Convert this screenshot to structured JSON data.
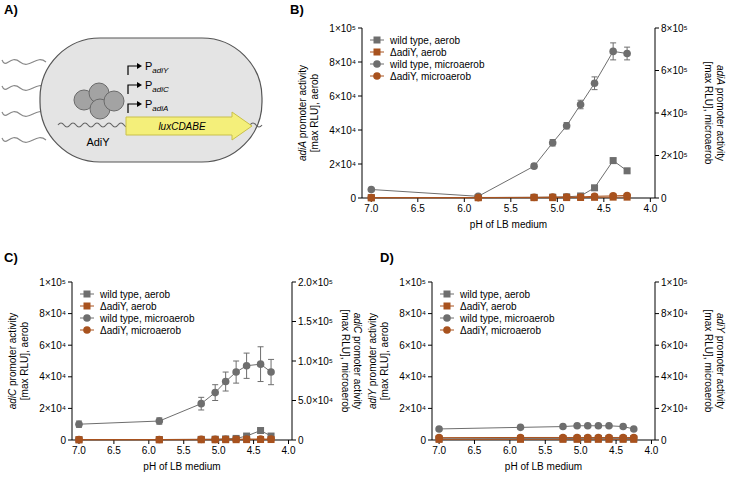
{
  "diagram": {
    "panel": "A)",
    "protein": "AdiY",
    "promoters": [
      "PadiY",
      "PadiC",
      "PadiA"
    ],
    "reporter": "luxCDABE"
  },
  "chart_data": [
    {
      "type": "line",
      "panel": "B)",
      "x_label": "pH of LB medium",
      "y_label": "adiA promoter activity [max RLU], aerob",
      "y2_label": "adiA promoter activity [max RLU], microaerob",
      "x": [
        7.0,
        5.85,
        5.25,
        5.05,
        4.9,
        4.75,
        4.6,
        4.4,
        4.25
      ],
      "xlim": [
        7.1,
        3.95
      ],
      "xticks": [
        {
          "value": 7,
          "label": "7.0"
        },
        6.5,
        {
          "value": 6,
          "label": "6.0"
        },
        5.5,
        {
          "value": 5,
          "label": "5.0"
        },
        4.5,
        {
          "value": 4,
          "label": "4.0"
        }
      ],
      "ylim": [
        0,
        100000
      ],
      "yticks": [
        0,
        {
          "value": 20000,
          "label": "2×10⁴"
        },
        {
          "value": 40000,
          "label": "4×10⁴"
        },
        {
          "value": 60000,
          "label": "6×10⁴"
        },
        {
          "value": 80000,
          "label": "8×10⁴"
        },
        {
          "value": 100000,
          "label": "1×10⁵"
        }
      ],
      "y2lim": [
        0,
        800000
      ],
      "y2ticks": [
        0,
        {
          "value": 200000,
          "label": "2×10⁵"
        },
        {
          "value": 400000,
          "label": "4×10⁵"
        },
        {
          "value": 600000,
          "label": "6×10⁵"
        },
        {
          "value": 800000,
          "label": "8×10⁵"
        }
      ],
      "legend": "top-left",
      "series": [
        {
          "name": "wild type, aerob",
          "color": "#6e6e6e",
          "marker": "square",
          "values": [
            200,
            300,
            400,
            500,
            700,
            1200,
            6000,
            22000,
            16000
          ],
          "errors": [
            100,
            100,
            100,
            100,
            200,
            300,
            800,
            1500,
            1200
          ]
        },
        {
          "name": "ΔadiY, aerob",
          "color": "#a8521e",
          "marker": "square",
          "values": [
            100,
            150,
            200,
            200,
            250,
            300,
            400,
            500,
            500
          ]
        },
        {
          "name": "wild type, microaerob",
          "color": "#6e6e6e",
          "marker": "circle",
          "axis": "y2",
          "values": [
            40000,
            8000,
            150000,
            260000,
            340000,
            440000,
            540000,
            690000,
            680000
          ],
          "errors": [
            5000,
            3000,
            10000,
            15000,
            15000,
            20000,
            30000,
            40000,
            30000
          ]
        },
        {
          "name": "ΔadiY, microaerob",
          "color": "#a8521e",
          "marker": "circle",
          "axis": "y2",
          "values": [
            2000,
            2000,
            3000,
            4000,
            4000,
            5000,
            8000,
            10000,
            12000
          ]
        }
      ]
    },
    {
      "type": "line",
      "panel": "C)",
      "x_label": "pH of LB medium",
      "y_label": "adiC promoter activity [max RLU], aerob",
      "y2_label": "adiC promoter activity [max RLU], microaerob",
      "x": [
        7.0,
        5.85,
        5.25,
        5.05,
        4.9,
        4.75,
        4.6,
        4.4,
        4.25
      ],
      "xlim": [
        7.1,
        3.95
      ],
      "xticks": [
        {
          "value": 7,
          "label": "7.0"
        },
        6.5,
        {
          "value": 6,
          "label": "6.0"
        },
        5.5,
        {
          "value": 5,
          "label": "5.0"
        },
        4.5,
        {
          "value": 4,
          "label": "4.0"
        }
      ],
      "ylim": [
        0,
        100000
      ],
      "yticks": [
        0,
        {
          "value": 20000,
          "label": "2×10⁴"
        },
        {
          "value": 40000,
          "label": "4×10⁴"
        },
        {
          "value": 60000,
          "label": "6×10⁴"
        },
        {
          "value": 80000,
          "label": "8×10⁴"
        },
        {
          "value": 100000,
          "label": "1×10⁵"
        }
      ],
      "y2lim": [
        0,
        200000
      ],
      "y2ticks": [
        0,
        {
          "value": 50000,
          "label": "5.0×10⁴"
        },
        {
          "value": 100000,
          "label": "1.0×10⁵"
        },
        {
          "value": 150000,
          "label": "1.5×10⁵"
        },
        {
          "value": 200000,
          "label": "2.0×10⁵"
        }
      ],
      "legend": "top-left",
      "series": [
        {
          "name": "wild type, aerob",
          "color": "#6e6e6e",
          "marker": "square",
          "values": [
            200,
            300,
            400,
            500,
            700,
            1000,
            2500,
            6000,
            2500
          ],
          "errors": [
            100,
            100,
            100,
            100,
            100,
            200,
            400,
            800,
            400
          ]
        },
        {
          "name": "ΔadiY, aerob",
          "color": "#a8521e",
          "marker": "square",
          "values": [
            100,
            100,
            150,
            150,
            200,
            200,
            250,
            300,
            300
          ]
        },
        {
          "name": "wild type, microaerob",
          "color": "#6e6e6e",
          "marker": "circle",
          "axis": "y2",
          "values": [
            20000,
            24000,
            46000,
            60000,
            74000,
            86000,
            94000,
            96000,
            86000
          ],
          "errors": [
            4000,
            4000,
            8000,
            10000,
            12000,
            14000,
            16000,
            22000,
            16000
          ]
        },
        {
          "name": "ΔadiY, microaerob",
          "color": "#a8521e",
          "marker": "circle",
          "axis": "y2",
          "values": [
            600,
            600,
            800,
            800,
            1000,
            1000,
            1200,
            1200,
            1200
          ]
        }
      ]
    },
    {
      "type": "line",
      "panel": "D)",
      "x_label": "pH of LB medium",
      "y_label": "adiY promoter activity [max RLU], aerob",
      "y2_label": "adiY promoter activity [max RLU], microaerob",
      "x": [
        7.0,
        5.85,
        5.25,
        5.05,
        4.9,
        4.75,
        4.6,
        4.4,
        4.25
      ],
      "xlim": [
        7.1,
        3.95
      ],
      "xticks": [
        {
          "value": 7,
          "label": "7.0"
        },
        6.5,
        {
          "value": 6,
          "label": "6.0"
        },
        5.5,
        {
          "value": 5,
          "label": "5.0"
        },
        4.5,
        {
          "value": 4,
          "label": "4.0"
        }
      ],
      "ylim": [
        0,
        100000
      ],
      "yticks": [
        0,
        {
          "value": 20000,
          "label": "2×10⁴"
        },
        {
          "value": 40000,
          "label": "4×10⁴"
        },
        {
          "value": 60000,
          "label": "6×10⁴"
        },
        {
          "value": 80000,
          "label": "8×10⁴"
        },
        {
          "value": 100000,
          "label": "1×10⁵"
        }
      ],
      "y2lim": [
        0,
        100000
      ],
      "y2ticks": [
        0,
        {
          "value": 20000,
          "label": "2×10⁴"
        },
        {
          "value": 40000,
          "label": "4×10⁴"
        },
        {
          "value": 60000,
          "label": "6×10⁴"
        },
        {
          "value": 80000,
          "label": "8×10⁴"
        },
        {
          "value": 100000,
          "label": "1×10⁵"
        }
      ],
      "legend": "top-left",
      "series": [
        {
          "name": "wild type, aerob",
          "color": "#6e6e6e",
          "marker": "square",
          "values": [
            800,
            900,
            900,
            1000,
            1000,
            1000,
            1000,
            1000,
            900
          ]
        },
        {
          "name": "ΔadiY, aerob",
          "color": "#a8521e",
          "marker": "square",
          "values": [
            400,
            400,
            400,
            400,
            400,
            400,
            400,
            400,
            400
          ]
        },
        {
          "name": "wild type, microaerob",
          "color": "#6e6e6e",
          "marker": "circle",
          "axis": "y2",
          "values": [
            7000,
            8000,
            8500,
            9000,
            9000,
            9000,
            9000,
            8500,
            7000
          ]
        },
        {
          "name": "ΔadiY, microaerob",
          "color": "#a8521e",
          "marker": "circle",
          "axis": "y2",
          "values": [
            1500,
            1600,
            1600,
            1600,
            1600,
            1600,
            1600,
            1600,
            1600
          ]
        }
      ]
    }
  ]
}
